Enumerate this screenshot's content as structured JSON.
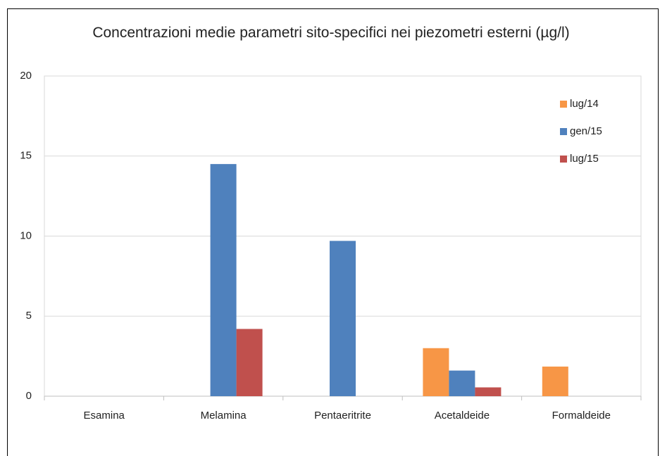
{
  "chart_data": {
    "type": "bar",
    "title": "Concentrazioni medie parametri sito-specifici nei piezometri esterni (µg/l)",
    "categories": [
      "Esamina",
      "Melamina",
      "Pentaeritrite",
      "Acetaldeide",
      "Formaldeide"
    ],
    "series": [
      {
        "name": "lug/14",
        "color": "#f79646",
        "values": [
          null,
          null,
          null,
          3.0,
          1.85
        ]
      },
      {
        "name": "gen/15",
        "color": "#4f81bd",
        "values": [
          null,
          14.5,
          9.7,
          1.6,
          null
        ]
      },
      {
        "name": "lug/15",
        "color": "#c0504d",
        "values": [
          null,
          4.2,
          null,
          0.55,
          null
        ]
      }
    ],
    "ylim": [
      0,
      20
    ],
    "yticks": [
      0,
      5,
      10,
      15,
      20
    ],
    "grid": true,
    "legend": "top-right"
  }
}
